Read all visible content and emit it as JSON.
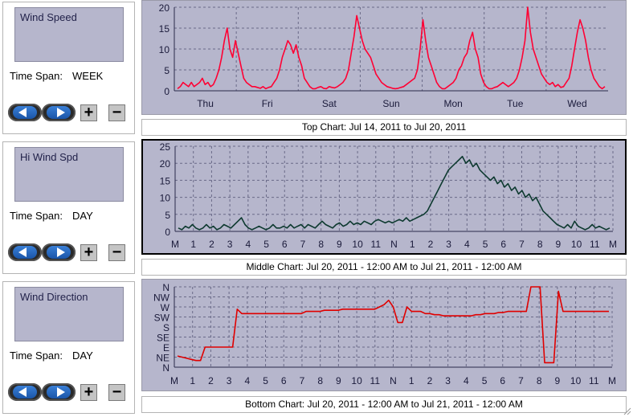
{
  "panels": [
    {
      "id": "top",
      "title": "Wind Speed",
      "span_label": "Time Span:",
      "span_value": "WEEK",
      "caption": "Top Chart:  Jul 14, 2011  to  Jul 20, 2011"
    },
    {
      "id": "middle",
      "title": "Hi Wind Spd",
      "span_label": "Time Span:",
      "span_value": "DAY",
      "caption": "Middle Chart:  Jul 20, 2011 - 12:00 AM  to  Jul 21, 2011 - 12:00 AM"
    },
    {
      "id": "bottom",
      "title": "Wind Direction",
      "span_label": "Time Span:",
      "span_value": "DAY",
      "caption": "Bottom Chart:  Jul 20, 2011 - 12:00 AM  to  Jul 21, 2011 - 12:00 AM"
    }
  ],
  "controls": {
    "plus": "+",
    "minus": "−"
  },
  "icons": {
    "back": "back-arrow-icon",
    "forward": "forward-arrow-icon"
  },
  "colors": {
    "panel_bg": "#b6b6cc",
    "top_line": "#ff0033",
    "middle_line": "#0e3a30",
    "bottom_line": "#e00000",
    "grid": "#6a6a88"
  },
  "chart_data": [
    {
      "type": "line",
      "series_name": "",
      "x_ticks": [
        "Thu",
        "Fri",
        "Sat",
        "Sun",
        "Mon",
        "Tue",
        "Wed"
      ],
      "y_ticks": [
        0,
        5,
        10,
        15,
        20
      ],
      "ylim": [
        0,
        20
      ],
      "values": [
        0.5,
        1,
        2,
        1.5,
        1,
        2,
        1,
        1.5,
        2,
        3,
        1.5,
        2,
        1,
        1.5,
        3,
        5,
        8,
        12,
        15,
        10,
        8,
        12,
        9,
        6,
        3,
        2,
        1.5,
        1,
        1,
        0.8,
        0.6,
        1,
        0.5,
        0.8,
        1,
        2,
        3,
        5,
        8,
        10,
        12,
        11,
        9,
        11,
        8,
        6,
        3,
        2,
        1,
        0.5,
        0.5,
        0.8,
        1,
        0.6,
        0.5,
        1,
        0.8,
        0.7,
        1,
        1.5,
        2,
        3,
        5,
        9,
        13,
        18,
        15,
        12,
        10,
        9,
        8,
        6,
        4,
        3,
        2,
        1.5,
        1,
        0.8,
        0.6,
        0.5,
        0.6,
        0.8,
        1,
        1.5,
        2,
        2.5,
        3,
        5,
        10,
        17,
        12,
        8,
        6,
        4,
        2,
        1,
        0.5,
        0.5,
        1,
        1.5,
        2,
        3,
        5,
        6,
        8,
        9,
        12,
        14,
        10,
        8,
        4,
        2,
        1,
        0.5,
        0.5,
        0.8,
        1,
        1.5,
        2,
        1.5,
        1,
        1.5,
        2,
        3,
        5,
        8,
        12,
        20,
        14,
        10,
        8,
        6,
        4,
        3,
        2,
        1.5,
        2,
        1,
        1.5,
        0.8,
        1,
        2,
        3,
        6,
        10,
        14,
        17,
        15,
        12,
        8,
        5,
        3,
        2,
        1,
        0.5,
        1
      ],
      "grid": true
    },
    {
      "type": "line",
      "series_name": "",
      "x_ticks": [
        "M",
        "1",
        "2",
        "3",
        "4",
        "5",
        "6",
        "7",
        "8",
        "9",
        "10",
        "11",
        "N",
        "1",
        "2",
        "3",
        "4",
        "5",
        "6",
        "7",
        "8",
        "9",
        "10",
        "11",
        "M"
      ],
      "y_ticks": [
        0,
        5,
        10,
        15,
        20,
        25
      ],
      "ylim": [
        0,
        25
      ],
      "values": [
        1,
        0.5,
        1.5,
        1,
        2,
        1,
        0.5,
        1,
        2,
        1,
        1.5,
        0.5,
        1,
        2,
        1.5,
        1,
        2,
        3,
        4,
        2,
        1,
        0.5,
        1,
        1.5,
        1,
        0.5,
        1,
        2,
        1,
        1,
        1.5,
        1,
        2,
        1,
        1.5,
        2,
        1,
        2,
        1.5,
        1,
        2,
        3,
        2,
        1.5,
        1,
        2,
        2.5,
        1.5,
        2,
        3,
        2,
        2.5,
        2,
        3,
        2.5,
        2,
        3,
        3.5,
        3,
        2.5,
        3,
        2.5,
        3,
        3.5,
        3,
        4,
        3,
        3.5,
        4,
        4.5,
        5,
        6,
        8,
        10,
        12,
        14,
        16,
        18,
        19,
        20,
        21,
        22,
        20,
        21,
        19,
        20,
        18,
        17,
        16,
        15,
        16,
        14,
        15,
        13,
        14,
        12,
        13,
        11,
        12,
        10,
        11,
        9,
        10,
        8,
        6,
        5,
        4,
        3,
        2,
        1.5,
        1,
        2,
        1,
        3,
        1.5,
        1,
        0.5,
        1,
        2,
        1,
        1.5,
        1,
        0.5,
        1
      ],
      "grid": true
    },
    {
      "type": "line",
      "series_name": "",
      "x_ticks": [
        "M",
        "1",
        "2",
        "3",
        "4",
        "5",
        "6",
        "7",
        "8",
        "9",
        "10",
        "11",
        "N",
        "1",
        "2",
        "3",
        "4",
        "5",
        "6",
        "7",
        "8",
        "9",
        "10",
        "11",
        "M"
      ],
      "y_ticks": [
        "N",
        "NE",
        "E",
        "SE",
        "S",
        "SW",
        "W",
        "NW",
        "N"
      ],
      "ylim": [
        0,
        360
      ],
      "values": [
        50,
        45,
        40,
        35,
        30,
        30,
        90,
        90,
        90,
        90,
        90,
        90,
        90,
        260,
        240,
        240,
        240,
        240,
        240,
        240,
        240,
        240,
        240,
        240,
        240,
        240,
        240,
        240,
        250,
        250,
        250,
        250,
        255,
        255,
        255,
        255,
        260,
        260,
        260,
        260,
        260,
        260,
        260,
        260,
        270,
        280,
        300,
        270,
        200,
        200,
        270,
        250,
        250,
        250,
        240,
        240,
        235,
        235,
        230,
        230,
        230,
        230,
        230,
        230,
        230,
        235,
        235,
        240,
        240,
        240,
        245,
        245,
        250,
        250,
        250,
        250,
        250,
        360,
        360,
        360,
        20,
        20,
        20,
        340,
        250,
        250,
        250,
        250,
        250,
        250,
        250,
        250,
        250,
        250,
        250
      ],
      "grid": true
    }
  ]
}
